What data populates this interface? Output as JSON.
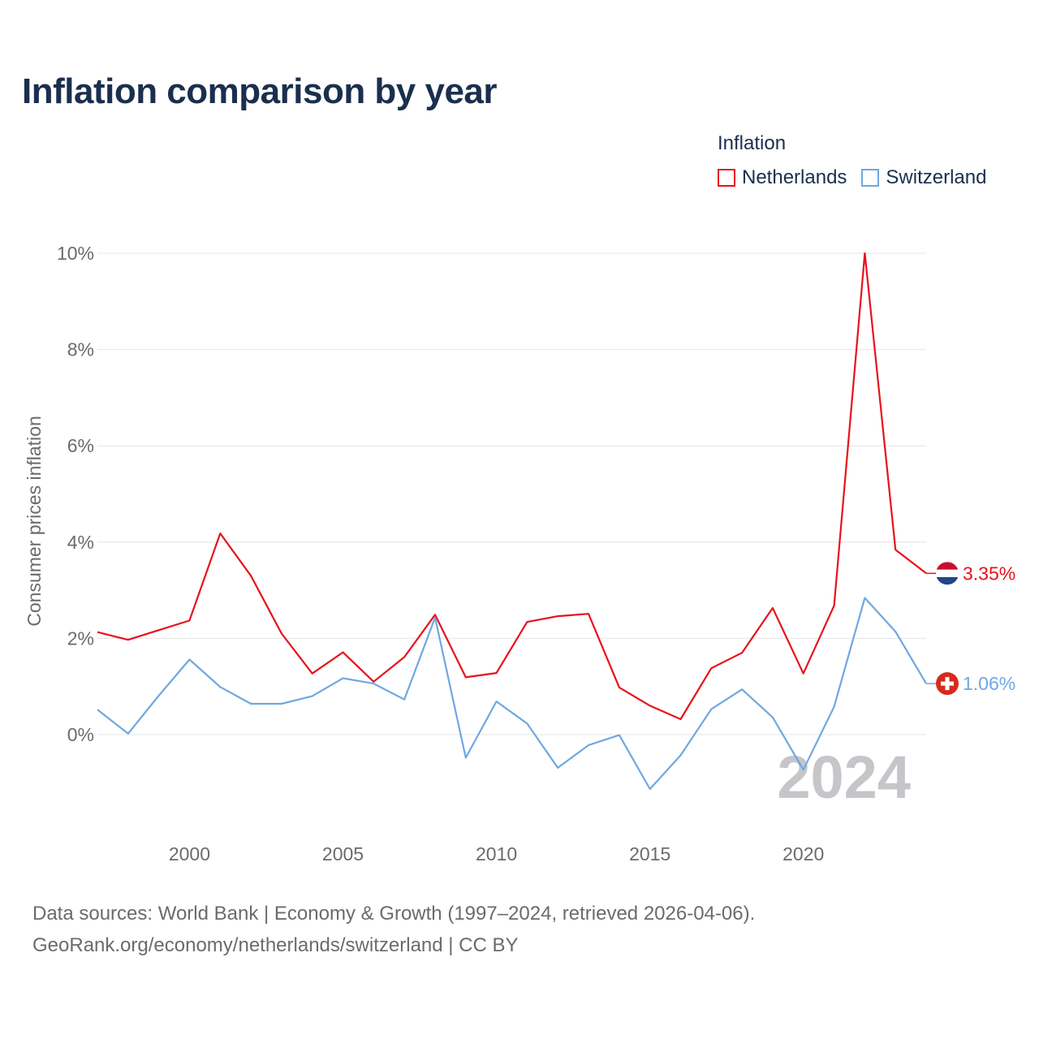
{
  "chart_data": {
    "type": "line",
    "title": "Inflation comparison by year",
    "legend_title": "Inflation",
    "legend_position": "top-right",
    "ylabel": "Consumer prices inflation",
    "xlabel": "",
    "xlim": [
      1997,
      2024
    ],
    "ylim": [
      -1.8,
      10
    ],
    "x_ticks": [
      2000,
      2005,
      2010,
      2015,
      2020
    ],
    "y_ticks": [
      0,
      2,
      4,
      6,
      8,
      10
    ],
    "y_tick_labels": [
      "0%",
      "2%",
      "4%",
      "6%",
      "8%",
      "10%"
    ],
    "grid": true,
    "year_watermark": "2024",
    "x": [
      1997,
      1998,
      1999,
      2000,
      2001,
      2002,
      2003,
      2004,
      2005,
      2006,
      2007,
      2008,
      2009,
      2010,
      2011,
      2012,
      2013,
      2014,
      2015,
      2016,
      2017,
      2018,
      2019,
      2020,
      2021,
      2022,
      2023,
      2024
    ],
    "series": [
      {
        "name": "Netherlands",
        "color": "#e8111b",
        "end_label": "3.35%",
        "icon": "netherlands-flag-icon",
        "values": [
          2.13,
          1.97,
          2.17,
          2.37,
          4.18,
          3.3,
          2.1,
          1.27,
          1.71,
          1.1,
          1.61,
          2.49,
          1.19,
          1.28,
          2.34,
          2.46,
          2.51,
          0.98,
          0.6,
          0.32,
          1.38,
          1.7,
          2.63,
          1.27,
          2.68,
          10.0,
          3.84,
          3.35
        ]
      },
      {
        "name": "Switzerland",
        "color": "#6fa8e0",
        "end_label": "1.06%",
        "icon": "switzerland-flag-icon",
        "values": [
          0.52,
          0.02,
          0.81,
          1.56,
          0.99,
          0.64,
          0.64,
          0.8,
          1.17,
          1.06,
          0.73,
          2.43,
          -0.48,
          0.69,
          0.23,
          -0.69,
          -0.22,
          -0.01,
          -1.13,
          -0.43,
          0.53,
          0.94,
          0.36,
          -0.73,
          0.58,
          2.84,
          2.14,
          1.06
        ]
      }
    ]
  },
  "footer": {
    "line1": "Data sources: World Bank | Economy & Growth (1997–2024, retrieved 2026-04-06).",
    "line2": "GeoRank.org/economy/netherlands/switzerland | CC BY"
  }
}
